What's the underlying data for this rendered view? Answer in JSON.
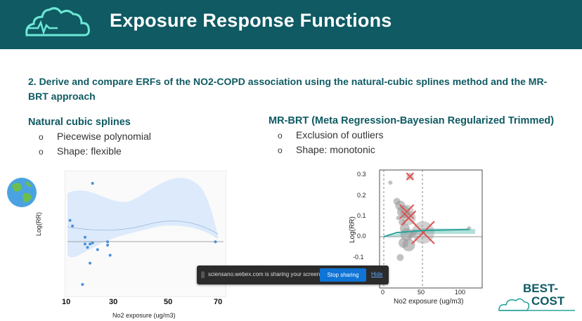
{
  "header": {
    "title": "Exposure Response Functions"
  },
  "subtitle": "2. Derive and compare ERFs of the NO2-COPD association using the natural-cubic splines method and the MR-BRT approach",
  "left_column": {
    "title": "Natural cubic splines",
    "bullets": [
      "Piecewise polynomial",
      "Shape: flexible"
    ]
  },
  "right_column": {
    "title": "MR-BRT (Meta Regression-Bayesian Regularized Trimmed)",
    "bullets": [
      "Exclusion of outliers",
      "Shape: monotonic"
    ]
  },
  "bullet_marker": "o",
  "chart_data": [
    {
      "type": "scatter",
      "title": "",
      "xlabel": "No2 exposure (ug/m3)",
      "ylabel": "Log(RR)",
      "x_ticks": [
        "10",
        "30",
        "50",
        "70"
      ],
      "xlim": [
        10,
        70
      ],
      "points": [
        {
          "x": 11,
          "y": 0.62
        },
        {
          "x": 12,
          "y": 0.57
        },
        {
          "x": 20,
          "y": 0.95
        },
        {
          "x": 17,
          "y": 0.47
        },
        {
          "x": 17,
          "y": 0.41
        },
        {
          "x": 18,
          "y": 0.38
        },
        {
          "x": 19,
          "y": 0.41
        },
        {
          "x": 20,
          "y": 0.42
        },
        {
          "x": 22,
          "y": 0.36
        },
        {
          "x": 26,
          "y": 0.43
        },
        {
          "x": 26,
          "y": 0.4
        },
        {
          "x": 27,
          "y": 0.31
        },
        {
          "x": 19,
          "y": 0.24
        },
        {
          "x": 16,
          "y": 0.05
        },
        {
          "x": 69,
          "y": 0.43
        }
      ]
    },
    {
      "type": "scatter",
      "title": "",
      "xlabel": "No2 exposure (ug/m3)",
      "ylabel": "Log(RR)",
      "y_ticks": [
        "0.3",
        "0.2",
        "0.1",
        "0.0",
        "-0.1"
      ],
      "x_ticks": [
        "0",
        "50",
        "100"
      ],
      "xlim": [
        -10,
        150
      ],
      "ylim": [
        -0.12,
        0.31
      ],
      "vlines": [
        0,
        60
      ],
      "included_points": [
        {
          "x": 10,
          "y": 0.26
        },
        {
          "x": 20,
          "y": 0.17
        },
        {
          "x": 25,
          "y": 0.15
        },
        {
          "x": 30,
          "y": 0.12
        },
        {
          "x": 22,
          "y": 0.09
        },
        {
          "x": 28,
          "y": 0.07
        },
        {
          "x": 32,
          "y": 0.04
        },
        {
          "x": 35,
          "y": 0.01
        },
        {
          "x": 40,
          "y": 0.0
        },
        {
          "x": 45,
          "y": 0.02
        },
        {
          "x": 30,
          "y": -0.03
        },
        {
          "x": 38,
          "y": -0.04
        },
        {
          "x": 130,
          "y": 0.04
        },
        {
          "x": 25,
          "y": -0.1
        }
      ],
      "trimmed_points": [
        {
          "x": 40,
          "y": 0.29
        },
        {
          "x": 35,
          "y": 0.12
        },
        {
          "x": 38,
          "y": 0.09
        },
        {
          "x": 60,
          "y": 0.02
        }
      ],
      "fit_line": [
        {
          "x": 0,
          "y": 0.0
        },
        {
          "x": 20,
          "y": 0.02
        },
        {
          "x": 60,
          "y": 0.03
        },
        {
          "x": 130,
          "y": 0.035
        }
      ]
    }
  ],
  "share_bar": {
    "grip": "||",
    "text": "sciensano.webex.com is sharing your screen.",
    "stop_label": "Stop sharing",
    "hide_label": "Hide"
  },
  "brand": {
    "line1": "BEST-",
    "line2": "COST"
  },
  "colors": {
    "header_bg": "#0f5a63",
    "heading_text": "#0f5a63",
    "band": "#d6e6fb",
    "left_points": "#4a90d9",
    "right_points": "#999999",
    "trimmed": "#e05050",
    "fit": "#2aa39a",
    "share_bg": "#2b2b2b",
    "stop_btn": "#0f74d6"
  }
}
